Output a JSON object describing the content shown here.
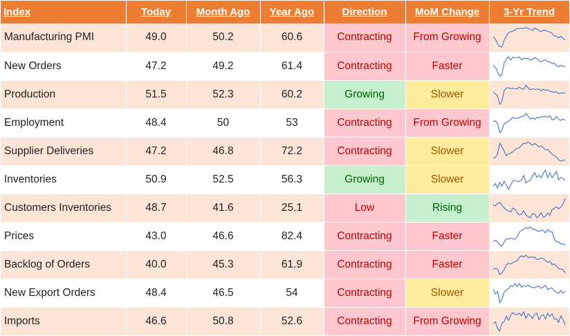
{
  "colors": {
    "header_bg": "#ed7d31",
    "band_bg": "#fce4d6",
    "red_bg": "#ffc7ce",
    "red_text": "#c00000",
    "green_bg": "#c6efce",
    "green_text": "#006100",
    "yellow_bg": "#ffeb9c",
    "yellow_text": "#9c5700",
    "sparkline": "#4472c4"
  },
  "headers": {
    "index": "Index",
    "today": "Today",
    "month_ago": "Month Ago",
    "year_ago": "Year Ago",
    "direction": "Direction",
    "mom_change": "MoM Change",
    "trend": "3-Yr Trend"
  },
  "rows": [
    {
      "index": "Manufacturing PMI",
      "today": "49.0",
      "month_ago": "50.2",
      "year_ago": "60.6",
      "direction": "Contracting",
      "direction_tone": "red",
      "mom_change": "From Growing",
      "mom_tone": "red"
    },
    {
      "index": "New Orders",
      "today": "47.2",
      "month_ago": "49.2",
      "year_ago": "61.4",
      "direction": "Contracting",
      "direction_tone": "red",
      "mom_change": "Faster",
      "mom_tone": "red"
    },
    {
      "index": "Production",
      "today": "51.5",
      "month_ago": "52.3",
      "year_ago": "60.2",
      "direction": "Growing",
      "direction_tone": "green",
      "mom_change": "Slower",
      "mom_tone": "yellow"
    },
    {
      "index": "Employment",
      "today": "48.4",
      "month_ago": "50",
      "year_ago": "53",
      "direction": "Contracting",
      "direction_tone": "red",
      "mom_change": "From Growing",
      "mom_tone": "red"
    },
    {
      "index": "Supplier Deliveries",
      "today": "47.2",
      "month_ago": "46.8",
      "year_ago": "72.2",
      "direction": "Contracting",
      "direction_tone": "red",
      "mom_change": "Slower",
      "mom_tone": "yellow"
    },
    {
      "index": "Inventories",
      "today": "50.9",
      "month_ago": "52.5",
      "year_ago": "56.3",
      "direction": "Growing",
      "direction_tone": "green",
      "mom_change": "Slower",
      "mom_tone": "yellow"
    },
    {
      "index": "Customers Inventories",
      "today": "48.7",
      "month_ago": "41.6",
      "year_ago": "25.1",
      "direction": "Low",
      "direction_tone": "red",
      "mom_change": "Rising",
      "mom_tone": "green"
    },
    {
      "index": "Prices",
      "today": "43.0",
      "month_ago": "46.6",
      "year_ago": "82.4",
      "direction": "Contracting",
      "direction_tone": "red",
      "mom_change": "Faster",
      "mom_tone": "red"
    },
    {
      "index": "Backlog of Orders",
      "today": "40.0",
      "month_ago": "45.3",
      "year_ago": "61.9",
      "direction": "Contracting",
      "direction_tone": "red",
      "mom_change": "Faster",
      "mom_tone": "red"
    },
    {
      "index": "New Export Orders",
      "today": "48.4",
      "month_ago": "46.5",
      "year_ago": "54",
      "direction": "Contracting",
      "direction_tone": "red",
      "mom_change": "Slower",
      "mom_tone": "yellow"
    },
    {
      "index": "Imports",
      "today": "46.6",
      "month_ago": "50.8",
      "year_ago": "52.6",
      "direction": "Contracting",
      "direction_tone": "red",
      "mom_change": "From Growing",
      "mom_tone": "red"
    }
  ],
  "chart_data": {
    "type": "table",
    "columns": [
      "Index",
      "Today",
      "Month Ago",
      "Year Ago",
      "Direction",
      "MoM Change",
      "3-Yr Trend"
    ],
    "rows": [
      [
        "Manufacturing PMI",
        49.0,
        50.2,
        60.6,
        "Contracting",
        "From Growing"
      ],
      [
        "New Orders",
        47.2,
        49.2,
        61.4,
        "Contracting",
        "Faster"
      ],
      [
        "Production",
        51.5,
        52.3,
        60.2,
        "Growing",
        "Slower"
      ],
      [
        "Employment",
        48.4,
        50,
        53,
        "Contracting",
        "From Growing"
      ],
      [
        "Supplier Deliveries",
        47.2,
        46.8,
        72.2,
        "Contracting",
        "Slower"
      ],
      [
        "Inventories",
        50.9,
        52.5,
        56.3,
        "Growing",
        "Slower"
      ],
      [
        "Customers Inventories",
        48.7,
        41.6,
        25.1,
        "Low",
        "Rising"
      ],
      [
        "Prices",
        43.0,
        46.6,
        82.4,
        "Contracting",
        "Faster"
      ],
      [
        "Backlog of Orders",
        40.0,
        45.3,
        61.9,
        "Contracting",
        "Faster"
      ],
      [
        "New Export Orders",
        48.4,
        46.5,
        54,
        "Contracting",
        "Slower"
      ],
      [
        "Imports",
        46.6,
        50.8,
        52.6,
        "Contracting",
        "From Growing"
      ]
    ],
    "sparklines": [
      [
        52.0,
        49.5,
        45.0,
        42.0,
        41.5,
        48.5,
        52.5,
        56.0,
        57.5,
        58.0,
        59.0,
        60.8,
        60.5,
        61.1,
        60.5,
        61.5,
        60.6,
        59.9,
        58.5,
        61.1,
        59.8,
        58.4,
        57.5,
        58.8,
        58.6,
        57.6,
        57.0,
        55.4,
        53.0,
        52.8,
        50.9,
        52.8,
        50.2,
        49.0
      ],
      [
        50.5,
        46.0,
        37.0,
        29.0,
        32.0,
        55.0,
        62.0,
        67.5,
        60.5,
        66.5,
        65.5,
        65.5,
        67.0,
        61.0,
        64.5,
        64.0,
        64.5,
        60.5,
        62.0,
        66.0,
        63.5,
        59.5,
        57.0,
        60.0,
        61.5,
        57.5,
        57.0,
        53.5,
        55.0,
        49.5,
        48.0,
        50.0,
        49.2,
        47.2
      ],
      [
        53.0,
        50.0,
        46.0,
        28.0,
        34.0,
        57.0,
        62.0,
        63.0,
        61.0,
        62.0,
        60.5,
        60.5,
        64.5,
        60.5,
        59.5,
        68.5,
        62.5,
        58.5,
        60.5,
        59.5,
        59.5,
        60.0,
        56.0,
        59.5,
        57.5,
        58.5,
        55.0,
        54.5,
        53.0,
        54.5,
        50.5,
        51.5,
        52.3,
        51.5
      ],
      [
        46.5,
        47.0,
        43.0,
        27.5,
        32.0,
        42.5,
        44.5,
        46.5,
        49.5,
        53.0,
        51.5,
        51.5,
        52.5,
        55.0,
        54.5,
        59.5,
        55.0,
        50.0,
        52.5,
        49.5,
        53.0,
        52.0,
        54.5,
        53.5,
        55.0,
        52.5,
        56.0,
        49.0,
        49.5,
        54.5,
        50.0,
        48.0,
        50.0,
        48.4
      ],
      [
        50.0,
        52.0,
        57.0,
        76.0,
        70.0,
        62.5,
        55.0,
        57.5,
        59.0,
        61.5,
        65.0,
        67.5,
        68.0,
        72.5,
        76.5,
        75.0,
        78.5,
        75.0,
        72.5,
        75.5,
        73.0,
        69.5,
        72.0,
        68.0,
        64.5,
        65.5,
        61.0,
        57.5,
        55.0,
        52.5,
        47.5,
        45.5,
        46.8,
        47.2
      ],
      [
        46.5,
        48.5,
        45.0,
        49.5,
        46.5,
        50.5,
        47.5,
        44.0,
        47.5,
        50.5,
        51.0,
        50.5,
        50.0,
        51.5,
        55.0,
        49.0,
        50.5,
        51.0,
        54.5,
        57.0,
        53.5,
        55.0,
        53.0,
        56.5,
        59.0,
        53.0,
        57.0,
        53.0,
        55.5,
        58.0,
        51.5,
        53.5,
        52.5,
        50.9
      ],
      [
        41.0,
        39.5,
        42.5,
        44.0,
        40.5,
        37.0,
        34.5,
        33.5,
        32.0,
        37.0,
        35.5,
        31.0,
        28.5,
        29.5,
        33.5,
        28.5,
        26.5,
        25.0,
        30.0,
        29.5,
        25.0,
        27.0,
        31.5,
        25.5,
        27.0,
        31.0,
        28.0,
        35.0,
        36.5,
        38.5,
        36.0,
        38.0,
        41.6,
        48.7
      ],
      [
        52.5,
        55.5,
        52.0,
        43.5,
        40.0,
        51.5,
        60.5,
        58.0,
        62.0,
        59.5,
        58.5,
        65.5,
        77.5,
        82.0,
        85.5,
        89.5,
        87.5,
        92.0,
        85.5,
        85.5,
        81.5,
        79.5,
        82.5,
        82.0,
        75.5,
        84.5,
        78.5,
        78.5,
        60.0,
        52.0,
        51.5,
        46.0,
        46.6,
        43.0
      ],
      [
        45.5,
        47.0,
        46.0,
        37.5,
        40.0,
        45.0,
        52.5,
        55.0,
        54.0,
        56.5,
        57.5,
        59.0,
        64.5,
        67.0,
        65.0,
        68.0,
        64.0,
        65.0,
        64.5,
        65.0,
        61.0,
        61.5,
        63.5,
        62.5,
        59.5,
        56.5,
        58.0,
        53.0,
        54.0,
        50.5,
        47.0,
        46.0,
        45.3,
        40.0
      ],
      [
        51.0,
        45.5,
        48.5,
        35.5,
        39.5,
        47.5,
        50.0,
        51.5,
        55.0,
        54.0,
        57.5,
        54.0,
        57.5,
        53.0,
        55.0,
        54.0,
        55.5,
        54.0,
        53.0,
        52.5,
        54.0,
        54.5,
        52.0,
        53.5,
        55.5,
        50.5,
        52.0,
        52.5,
        49.0,
        47.5,
        46.0,
        49.5,
        46.5,
        48.4
      ],
      [
        47.5,
        49.0,
        44.0,
        42.0,
        48.0,
        49.0,
        53.5,
        50.0,
        54.0,
        56.0,
        54.5,
        54.5,
        55.5,
        53.5,
        56.5,
        51.5,
        55.0,
        53.5,
        51.5,
        54.5,
        55.5,
        50.5,
        53.5,
        54.5,
        51.0,
        55.5,
        53.0,
        55.0,
        51.0,
        51.5,
        48.5,
        53.5,
        50.8,
        46.6
      ]
    ]
  }
}
